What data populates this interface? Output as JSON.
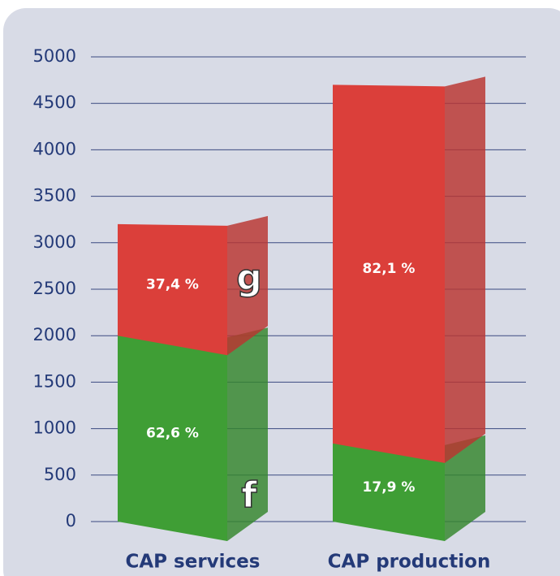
{
  "chart_data": {
    "type": "stacked_bar_3d",
    "categories": [
      "CAP services",
      "CAP production"
    ],
    "series": [
      {
        "name": "f",
        "color": "#3f9e35",
        "values": [
          2000,
          840
        ],
        "labels": [
          "62,6 %",
          "17,9 %"
        ]
      },
      {
        "name": "g",
        "color": "#db3f3a",
        "values": [
          1200,
          3860
        ],
        "labels": [
          "37,4 %",
          "82,1 %"
        ]
      }
    ],
    "ylim": [
      0,
      5000
    ],
    "yticks": [
      0,
      500,
      1000,
      1500,
      2000,
      2500,
      3000,
      3500,
      4000,
      4500,
      5000
    ],
    "grid": true
  }
}
